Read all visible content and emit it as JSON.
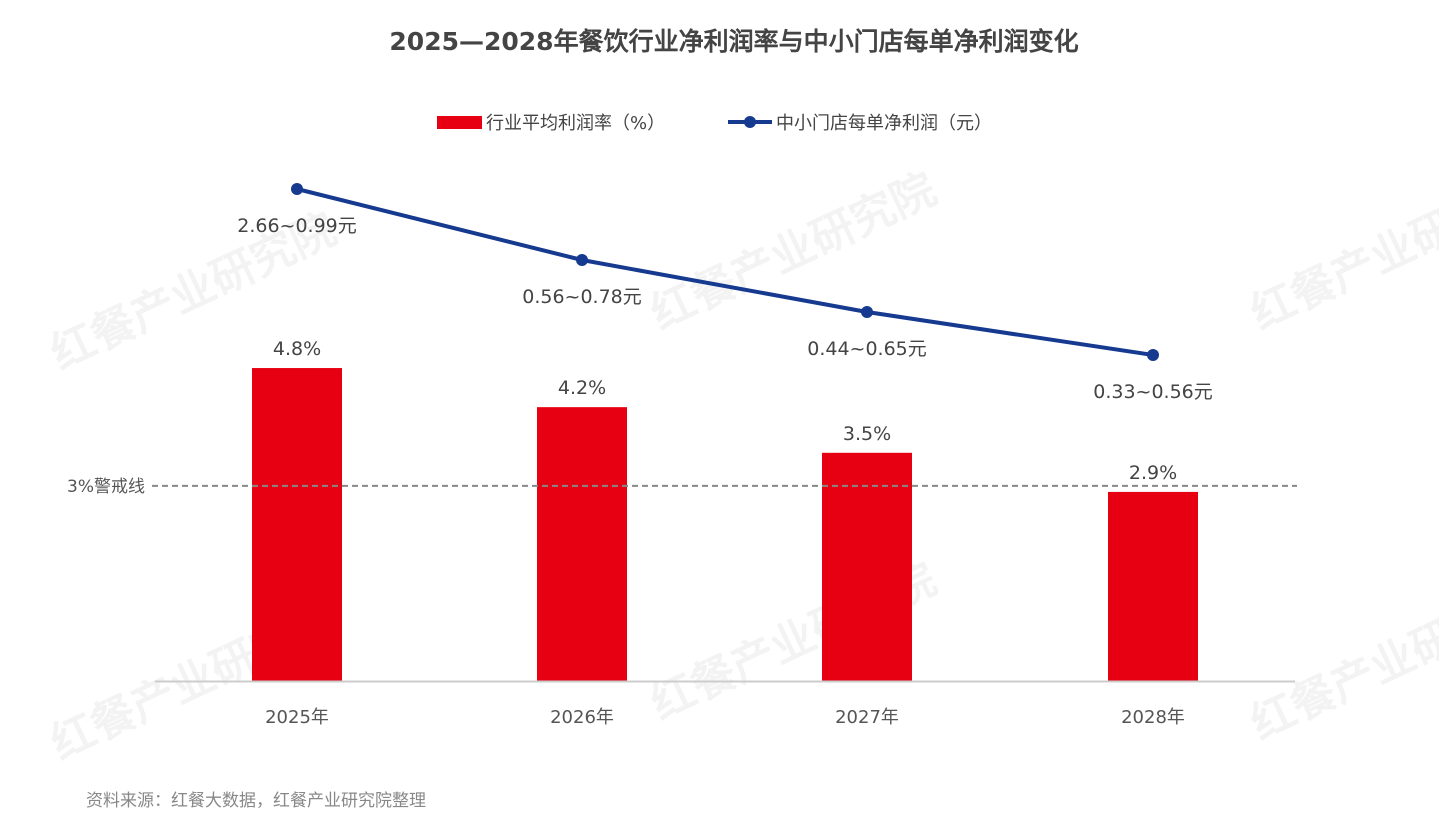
{
  "chart_data": {
    "type": "bar+line",
    "title": "2025—2028年餐饮行业净利润率与中小门店每单净利润变化",
    "categories": [
      "2025年",
      "2026年",
      "2027年",
      "2028年"
    ],
    "legend_position": "top",
    "grid": false,
    "series": [
      {
        "name": "行业平均利润率（%）",
        "type": "bar",
        "color": "#e60012",
        "values": [
          4.8,
          4.2,
          3.5,
          2.9
        ],
        "labels": [
          "4.8%",
          "4.2%",
          "3.5%",
          "2.9%"
        ]
      },
      {
        "name": "中小门店每单净利润（元）",
        "type": "line",
        "color": "#163a8f",
        "ranges": [
          [
            0.99,
            2.66
          ],
          [
            0.56,
            0.78
          ],
          [
            0.44,
            0.65
          ],
          [
            0.33,
            0.56
          ]
        ],
        "labels": [
          "2.66~0.99元",
          "0.56~0.78元",
          "0.44~0.65元",
          "0.33~0.56元"
        ]
      }
    ],
    "reference_line": {
      "value": 3,
      "label": "3%警戒线",
      "color": "#888888"
    },
    "ylim": [
      0,
      5.5
    ]
  },
  "source": "资料来源：红餐大数据，红餐产业研究院整理",
  "watermark": "红餐产业研究院"
}
